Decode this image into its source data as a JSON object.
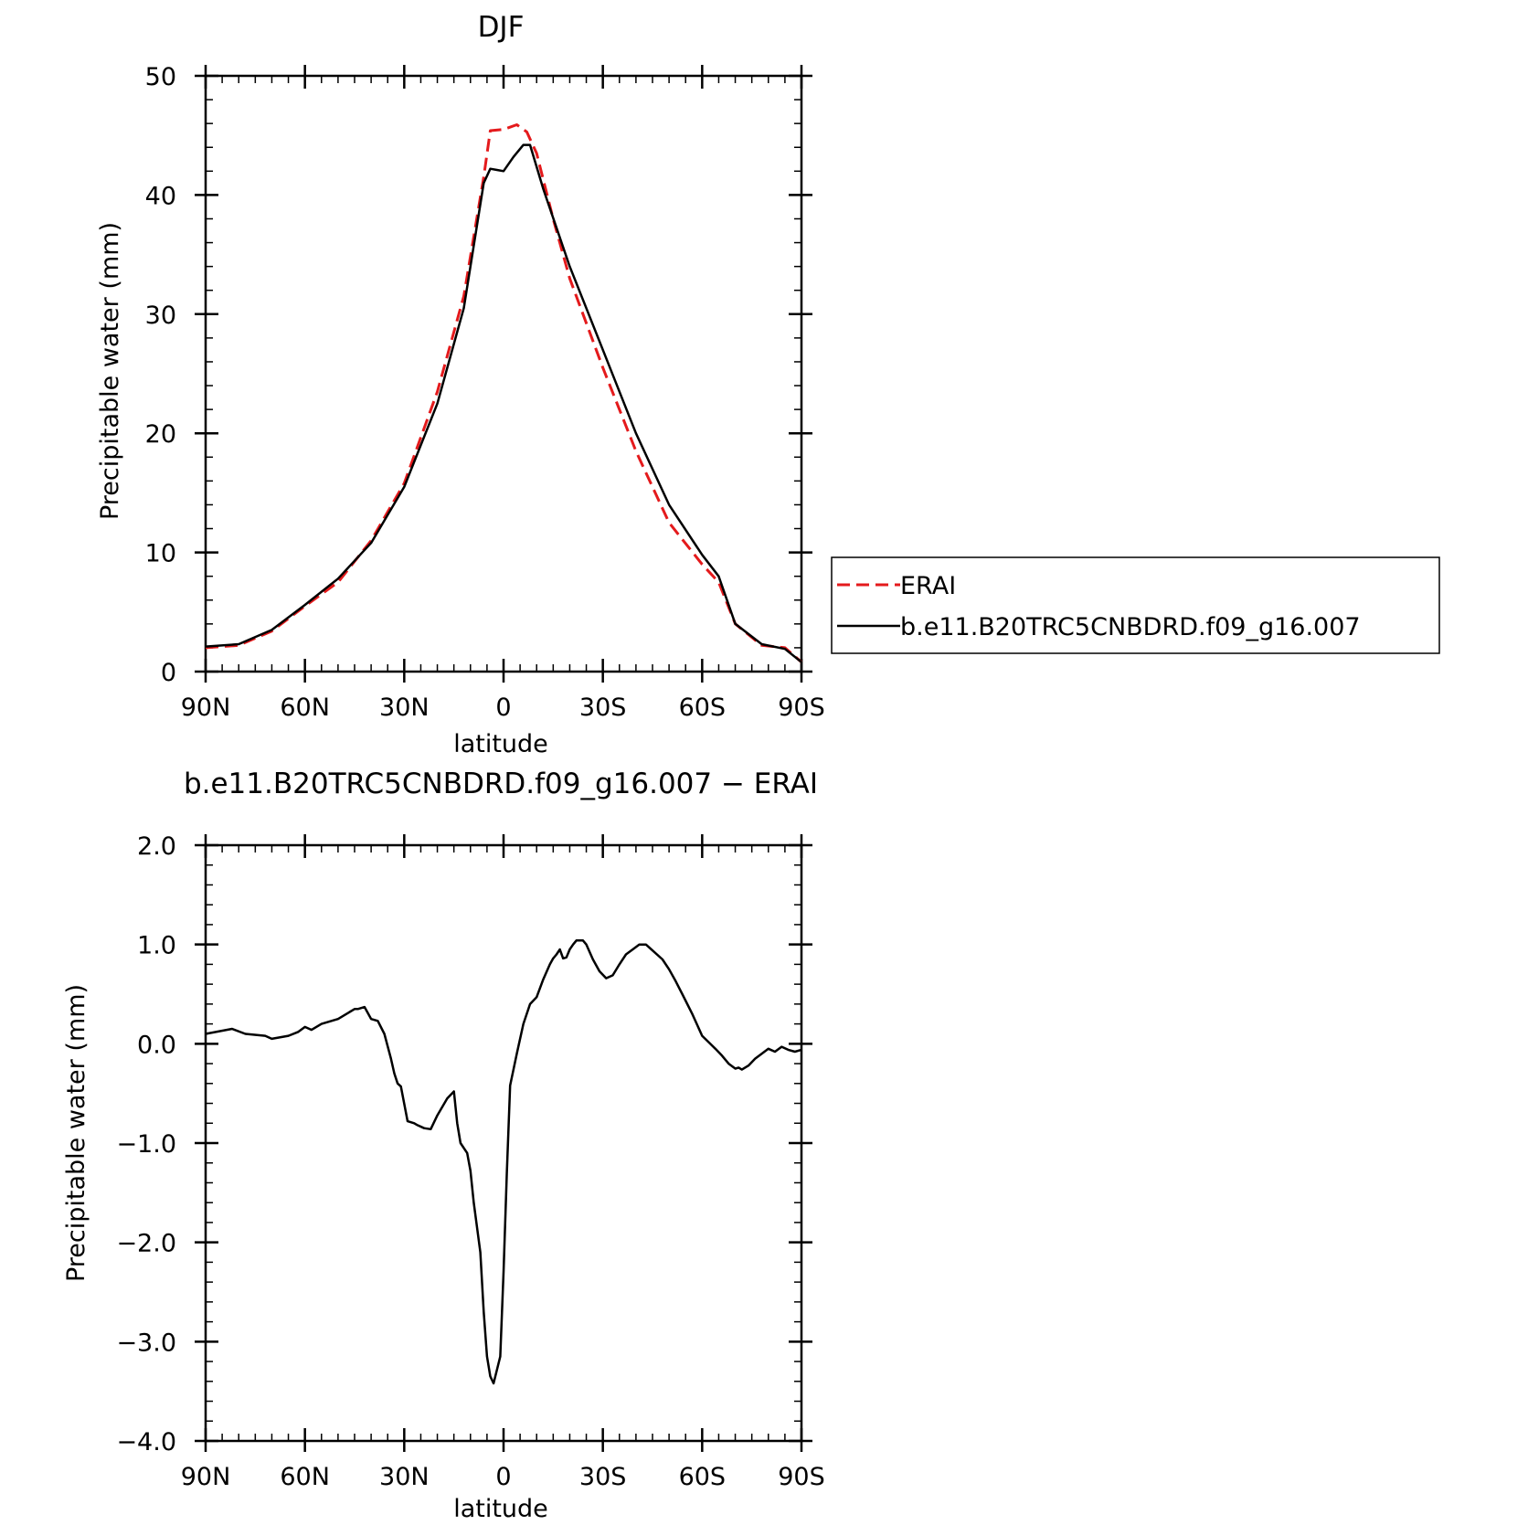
{
  "colors": {
    "erai": "#e41a1c",
    "model": "#000000",
    "axis": "#000000",
    "background": "#ffffff"
  },
  "chart_data": [
    {
      "type": "line",
      "title": "DJF",
      "xlabel": "latitude",
      "ylabel": "Precipitable water (mm)",
      "xlim": [
        90,
        -90
      ],
      "ylim": [
        0,
        50
      ],
      "x_ticks": [
        90,
        60,
        30,
        0,
        -30,
        -60,
        -90
      ],
      "x_tick_labels": [
        "90N",
        "60N",
        "30N",
        "0",
        "30S",
        "60S",
        "90S"
      ],
      "y_ticks": [
        0,
        10,
        20,
        30,
        40,
        50
      ],
      "y_tick_labels": [
        "0",
        "10",
        "20",
        "30",
        "40",
        "50"
      ],
      "grid": false,
      "legend_placement": "right",
      "series": [
        {
          "name": "ERAI",
          "color": "#e41a1c",
          "style": "dashed",
          "x": [
            90,
            80,
            70,
            60,
            50,
            40,
            30,
            20,
            12,
            6,
            4,
            0,
            -4,
            -7,
            -10,
            -15,
            -20,
            -30,
            -40,
            -50,
            -60,
            -65,
            -70,
            -78,
            -85,
            -90
          ],
          "y": [
            2.0,
            2.2,
            3.4,
            5.5,
            7.5,
            11.0,
            15.8,
            23.5,
            31.5,
            41.5,
            45.4,
            45.5,
            45.9,
            45.3,
            43.5,
            38.0,
            33.0,
            25.5,
            18.5,
            12.5,
            9.0,
            7.5,
            4.0,
            2.2,
            2.0,
            0.8
          ]
        },
        {
          "name": "b.e11.B20TRC5CNBDRD.f09_g16.007",
          "color": "#000000",
          "style": "solid",
          "x": [
            90,
            80,
            70,
            60,
            50,
            40,
            30,
            20,
            12,
            6,
            4,
            2,
            0,
            -3,
            -6,
            -8,
            -12,
            -20,
            -30,
            -40,
            -50,
            -60,
            -65,
            -70,
            -78,
            -85,
            -90
          ],
          "y": [
            2.1,
            2.3,
            3.5,
            5.6,
            7.8,
            10.8,
            15.5,
            22.5,
            30.5,
            41.0,
            42.2,
            42.1,
            42.0,
            43.2,
            44.2,
            44.2,
            40.5,
            34.0,
            27.0,
            20.0,
            14.0,
            9.8,
            8.0,
            4.0,
            2.3,
            1.9,
            0.8
          ]
        }
      ]
    },
    {
      "type": "line",
      "title": "b.e11.B20TRC5CNBDRD.f09_g16.007 − ERAI",
      "xlabel": "latitude",
      "ylabel": "Precipitable water (mm)",
      "xlim": [
        90,
        -90
      ],
      "ylim": [
        -4,
        2
      ],
      "x_ticks": [
        90,
        60,
        30,
        0,
        -30,
        -60,
        -90
      ],
      "x_tick_labels": [
        "90N",
        "60N",
        "30N",
        "0",
        "30S",
        "60S",
        "90S"
      ],
      "y_ticks": [
        2,
        1,
        0,
        -1,
        -2,
        -3,
        -4
      ],
      "y_tick_labels": [
        "2.0",
        "1.0",
        "0.0",
        "−1.0",
        "−2.0",
        "−3.0",
        "−4.0"
      ],
      "grid": false,
      "series": [
        {
          "color": "#000000",
          "style": "solid",
          "x": [
            90,
            82,
            78,
            72,
            70,
            65,
            62,
            60,
            58,
            55,
            50,
            45,
            44,
            42,
            40,
            38,
            36,
            34,
            33,
            32,
            31,
            29,
            27,
            26,
            24,
            22,
            20,
            17,
            15,
            14,
            13,
            11,
            10,
            9,
            7,
            6,
            5,
            4,
            3,
            1,
            0,
            -1,
            -2,
            -4,
            -6,
            -8,
            -10,
            -12,
            -14,
            -15,
            -16,
            -17,
            -18,
            -19,
            -20,
            -21,
            -22,
            -24,
            -25,
            -27,
            -29,
            -31,
            -33,
            -35,
            -37,
            -39,
            -41,
            -43,
            -45,
            -48,
            -50,
            -52,
            -54,
            -57,
            -60,
            -64,
            -66,
            -68,
            -70,
            -71,
            -72,
            -74,
            -76,
            -78,
            -80,
            -82,
            -84,
            -86,
            -88,
            -90
          ],
          "y": [
            0.1,
            0.15,
            0.1,
            0.08,
            0.05,
            0.08,
            0.12,
            0.17,
            0.14,
            0.2,
            0.25,
            0.35,
            0.35,
            0.37,
            0.25,
            0.23,
            0.1,
            -0.15,
            -0.3,
            -0.4,
            -0.43,
            -0.78,
            -0.8,
            -0.82,
            -0.85,
            -0.86,
            -0.72,
            -0.55,
            -0.48,
            -0.8,
            -1.0,
            -1.1,
            -1.28,
            -1.6,
            -2.1,
            -2.7,
            -3.15,
            -3.35,
            -3.42,
            -3.15,
            -2.3,
            -1.3,
            -0.42,
            -0.1,
            0.2,
            0.4,
            0.47,
            0.65,
            0.8,
            0.86,
            0.9,
            0.95,
            0.86,
            0.87,
            0.95,
            1.0,
            1.04,
            1.04,
            1.0,
            0.85,
            0.73,
            0.66,
            0.69,
            0.8,
            0.9,
            0.95,
            1.0,
            1.0,
            0.94,
            0.85,
            0.75,
            0.63,
            0.5,
            0.3,
            0.08,
            -0.05,
            -0.12,
            -0.2,
            -0.25,
            -0.24,
            -0.26,
            -0.22,
            -0.15,
            -0.1,
            -0.05,
            -0.08,
            -0.03,
            -0.06,
            -0.08,
            -0.06
          ]
        }
      ]
    }
  ]
}
